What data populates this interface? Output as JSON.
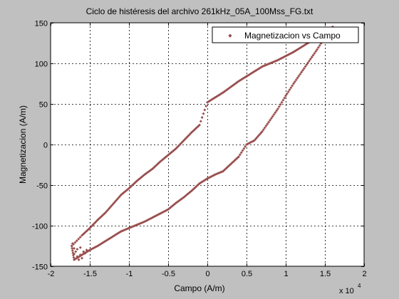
{
  "chart_data": {
    "type": "scatter",
    "title": "Ciclo de histéresis del archivo 261kHz_05A_100Mss_FG.txt",
    "xlabel": "Campo (A/m)",
    "ylabel": "Magnetizacion (A/m)",
    "x_exponent_label": "x 10",
    "x_exponent_power": "4",
    "xlim": [
      -2,
      2
    ],
    "ylim": [
      -150,
      150
    ],
    "x_scale_factor": 10000,
    "xticks": [
      -2,
      -1.5,
      -1,
      -0.5,
      0,
      0.5,
      1,
      1.5,
      2
    ],
    "xtick_labels": [
      "-2",
      "-1.5",
      "-1",
      "-0.5",
      "0",
      "0.5",
      "1",
      "1.5",
      "2"
    ],
    "yticks": [
      -150,
      -100,
      -50,
      0,
      50,
      100,
      150
    ],
    "ytick_labels": [
      "-150",
      "-100",
      "-50",
      "0",
      "50",
      "100",
      "150"
    ],
    "grid": true,
    "legend_position": "top-right",
    "marker_color": "#9a4f4f",
    "series": [
      {
        "name": "Magnetizacion vs Campo",
        "upper_branch": [
          [
            -1.73,
            -125
          ],
          [
            -1.6,
            -112
          ],
          [
            -1.5,
            -103
          ],
          [
            -1.4,
            -93
          ],
          [
            -1.3,
            -84
          ],
          [
            -1.2,
            -73
          ],
          [
            -1.1,
            -62
          ],
          [
            -1.0,
            -54
          ],
          [
            -0.9,
            -45
          ],
          [
            -0.8,
            -37
          ],
          [
            -0.7,
            -30
          ],
          [
            -0.6,
            -21
          ],
          [
            -0.5,
            -13
          ],
          [
            -0.4,
            -5
          ],
          [
            -0.3,
            5
          ],
          [
            -0.2,
            15
          ],
          [
            -0.1,
            24
          ],
          [
            0.0,
            52
          ],
          [
            0.1,
            58
          ],
          [
            0.2,
            64
          ],
          [
            0.3,
            71
          ],
          [
            0.4,
            78
          ],
          [
            0.5,
            84
          ],
          [
            0.6,
            90
          ],
          [
            0.7,
            96
          ],
          [
            0.8,
            100
          ],
          [
            0.9,
            104
          ],
          [
            1.0,
            109
          ],
          [
            1.1,
            114
          ],
          [
            1.2,
            120
          ],
          [
            1.3,
            126
          ],
          [
            1.4,
            131
          ],
          [
            1.5,
            138
          ],
          [
            1.6,
            145
          ]
        ],
        "lower_branch": [
          [
            1.6,
            145
          ],
          [
            1.5,
            132
          ],
          [
            1.4,
            117
          ],
          [
            1.3,
            103
          ],
          [
            1.2,
            89
          ],
          [
            1.1,
            75
          ],
          [
            1.0,
            60
          ],
          [
            0.9,
            44
          ],
          [
            0.8,
            30
          ],
          [
            0.7,
            16
          ],
          [
            0.6,
            5
          ],
          [
            0.5,
            0
          ],
          [
            0.4,
            -15
          ],
          [
            0.3,
            -24
          ],
          [
            0.2,
            -33
          ],
          [
            0.1,
            -37
          ],
          [
            0.0,
            -42
          ],
          [
            -0.1,
            -48
          ],
          [
            -0.2,
            -57
          ],
          [
            -0.3,
            -65
          ],
          [
            -0.4,
            -72
          ],
          [
            -0.5,
            -80
          ],
          [
            -0.6,
            -85
          ],
          [
            -0.7,
            -90
          ],
          [
            -0.8,
            -95
          ],
          [
            -0.9,
            -99
          ],
          [
            -1.0,
            -103
          ],
          [
            -1.1,
            -107
          ],
          [
            -1.2,
            -113
          ],
          [
            -1.3,
            -119
          ],
          [
            -1.4,
            -125
          ],
          [
            -1.5,
            -130
          ],
          [
            -1.6,
            -136
          ],
          [
            -1.7,
            -142
          ],
          [
            -1.73,
            -125
          ]
        ],
        "tip_scatter": [
          [
            -1.72,
            -122
          ],
          [
            -1.7,
            -128
          ],
          [
            -1.68,
            -132
          ],
          [
            -1.66,
            -138
          ],
          [
            -1.64,
            -142
          ],
          [
            -1.62,
            -136
          ],
          [
            -1.6,
            -140
          ],
          [
            -1.58,
            -132
          ],
          [
            -1.56,
            -134
          ],
          [
            -1.54,
            -130
          ],
          [
            -1.7,
            -135
          ],
          [
            -1.66,
            -129
          ],
          [
            -1.62,
            -127
          ]
        ]
      }
    ]
  }
}
